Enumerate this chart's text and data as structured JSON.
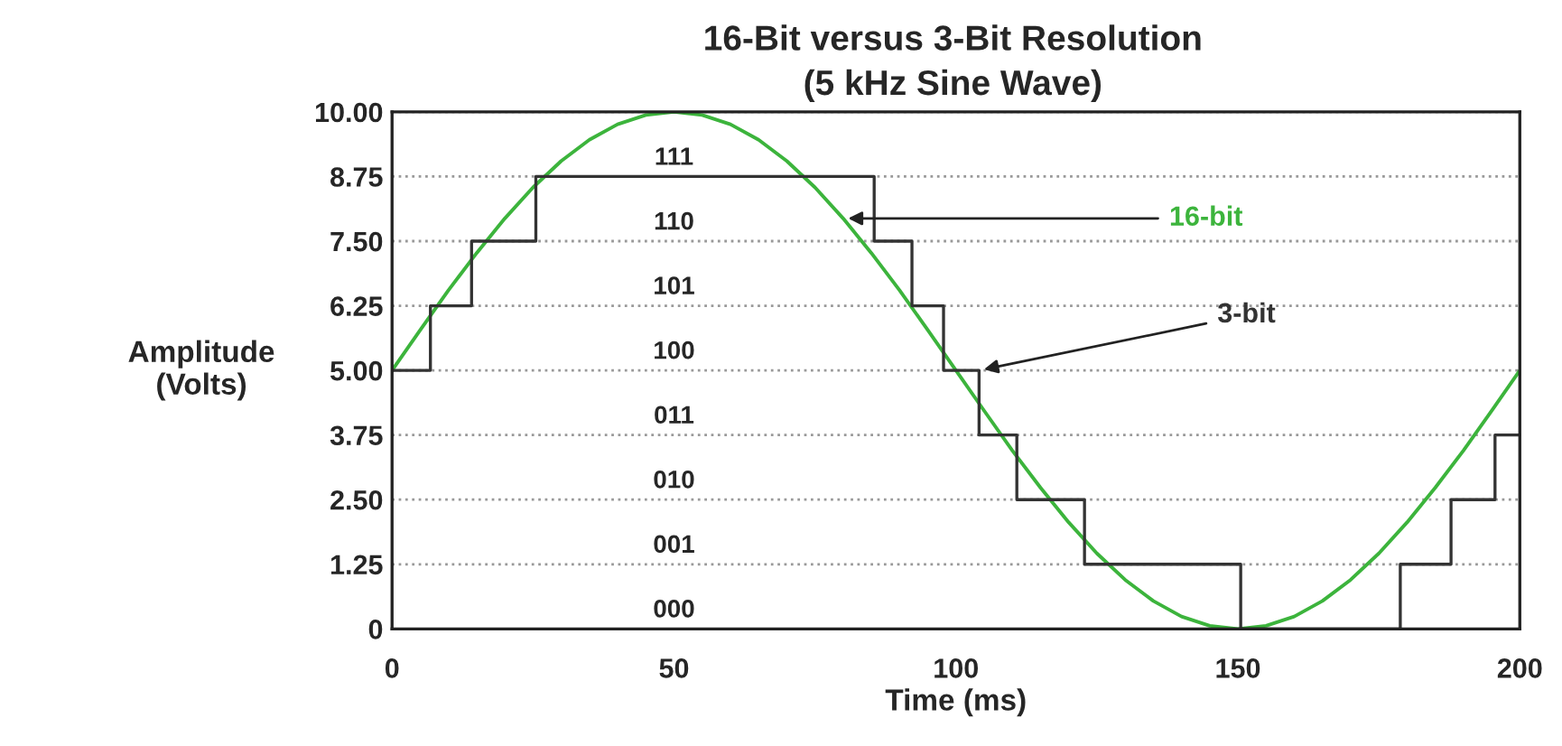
{
  "chart_data": {
    "type": "line",
    "title": "16-Bit versus 3-Bit Resolution",
    "subtitle": "(5 kHz Sine Wave)",
    "xlabel": "Time (ms)",
    "ylabel": "Amplitude\n(Volts)",
    "xlim": [
      0,
      200
    ],
    "xticks": [
      0,
      50,
      100,
      150,
      200
    ],
    "ylim": [
      0,
      10
    ],
    "yticks": [
      0,
      {
        "value": 1.25,
        "label": "1.25"
      },
      {
        "value": 2.5,
        "label": "2.50"
      },
      {
        "value": 3.75,
        "label": "3.75"
      },
      {
        "value": 5,
        "label": "5.00"
      },
      {
        "value": 6.25,
        "label": "6.25"
      },
      {
        "value": 7.5,
        "label": "7.50"
      },
      {
        "value": 8.75,
        "label": "8.75"
      },
      {
        "value": 10,
        "label": "10.00"
      }
    ],
    "grid": "y",
    "legend": false,
    "series": [
      {
        "name": "16-bit",
        "color": "#3cb43c",
        "x": [
          0,
          5,
          10,
          15,
          20,
          25,
          30,
          35,
          40,
          45,
          50,
          55,
          60,
          65,
          70,
          75,
          80,
          85,
          90,
          95,
          100,
          105,
          110,
          115,
          120,
          125,
          130,
          135,
          140,
          145,
          150,
          155,
          160,
          165,
          170,
          175,
          180,
          185,
          190,
          195,
          200
        ],
        "values": [
          5,
          5.78,
          6.55,
          7.27,
          7.94,
          8.54,
          9.05,
          9.46,
          9.76,
          9.94,
          10,
          9.94,
          9.76,
          9.46,
          9.05,
          8.54,
          7.94,
          7.27,
          6.55,
          5.78,
          5,
          4.22,
          3.45,
          2.73,
          2.06,
          1.46,
          0.95,
          0.54,
          0.24,
          0.06,
          0,
          0.06,
          0.24,
          0.54,
          0.95,
          1.46,
          2.06,
          2.73,
          3.45,
          4.22,
          5
        ]
      },
      {
        "name": "3-bit",
        "type": "step",
        "color": "#333333",
        "x": [
          0,
          6.8,
          14.1,
          25.5,
          85.5,
          92.2,
          97.8,
          104.1,
          110.8,
          122.8,
          150.5,
          178.8,
          187.8,
          195.6,
          200
        ],
        "values": [
          5,
          6.25,
          7.5,
          8.75,
          7.5,
          6.25,
          5,
          3.75,
          2.5,
          1.25,
          0,
          1.25,
          2.5,
          3.75,
          3.75
        ]
      }
    ],
    "annotations": [
      "111",
      "110",
      "101",
      "100",
      "011",
      "010",
      "001",
      "000"
    ]
  }
}
